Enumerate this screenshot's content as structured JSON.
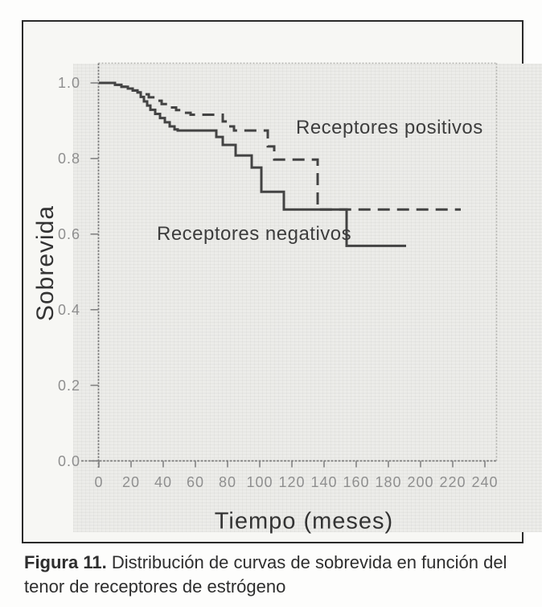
{
  "figure": {
    "caption_bold": "Figura 11.",
    "caption_rest": " Distribución de curvas de sobrevida en función del tenor de receptores de estrógeno"
  },
  "colors": {
    "curve": "#434343",
    "axis": "#7d7d7d",
    "frame": "#b4b4b0",
    "tick_text": "#8f8f8f",
    "ink": "#333333",
    "plot_bg": "#ecece9",
    "box_border": "#2a2a2a"
  },
  "chart_data": {
    "type": "line",
    "chart_kind": "kaplan-meier-survival-step",
    "title": "",
    "xlabel": "Tiempo (meses)",
    "ylabel": "Sobrevida",
    "xlim": [
      0,
      240
    ],
    "ylim": [
      0.0,
      1.0
    ],
    "xticks": [
      0,
      20,
      40,
      60,
      80,
      100,
      120,
      140,
      160,
      180,
      200,
      220,
      240
    ],
    "yticks": [
      0.0,
      0.2,
      0.4,
      0.6,
      0.8,
      1.0
    ],
    "grid": false,
    "legend_position": "in-plot text annotations",
    "series": [
      {
        "name": "Receptores positivos",
        "line_style": "dashed",
        "color": "#434343",
        "points": [
          [
            0,
            1.0
          ],
          [
            8,
            1.0
          ],
          [
            10,
            0.995
          ],
          [
            14,
            0.99
          ],
          [
            18,
            0.985
          ],
          [
            21,
            0.98
          ],
          [
            24,
            0.975
          ],
          [
            27,
            0.97
          ],
          [
            31,
            0.962
          ],
          [
            35,
            0.953
          ],
          [
            39,
            0.944
          ],
          [
            43,
            0.935
          ],
          [
            48,
            0.928
          ],
          [
            53,
            0.921
          ],
          [
            57,
            0.916
          ],
          [
            77,
            0.898
          ],
          [
            81,
            0.885
          ],
          [
            84,
            0.874
          ],
          [
            105,
            0.832
          ],
          [
            109,
            0.797
          ],
          [
            136,
            0.665
          ],
          [
            225,
            0.665
          ]
        ]
      },
      {
        "name": "Receptores negativos",
        "line_style": "solid",
        "color": "#434343",
        "points": [
          [
            0,
            1.0
          ],
          [
            8,
            1.0
          ],
          [
            10,
            0.995
          ],
          [
            14,
            0.99
          ],
          [
            18,
            0.985
          ],
          [
            21,
            0.98
          ],
          [
            24,
            0.975
          ],
          [
            26,
            0.963
          ],
          [
            28,
            0.951
          ],
          [
            30,
            0.94
          ],
          [
            32,
            0.929
          ],
          [
            35,
            0.918
          ],
          [
            38,
            0.907
          ],
          [
            41,
            0.896
          ],
          [
            44,
            0.885
          ],
          [
            47,
            0.877
          ],
          [
            49,
            0.874
          ],
          [
            73,
            0.857
          ],
          [
            77,
            0.836
          ],
          [
            85,
            0.808
          ],
          [
            95,
            0.776
          ],
          [
            101,
            0.712
          ],
          [
            115,
            0.665
          ],
          [
            154,
            0.569
          ],
          [
            191,
            0.569
          ]
        ]
      }
    ],
    "annotations": [
      {
        "text": "Receptores positivos",
        "x": 122.5,
        "y": 0.883
      },
      {
        "text": "Receptores negativos",
        "x": 36,
        "y": 0.601
      }
    ]
  }
}
